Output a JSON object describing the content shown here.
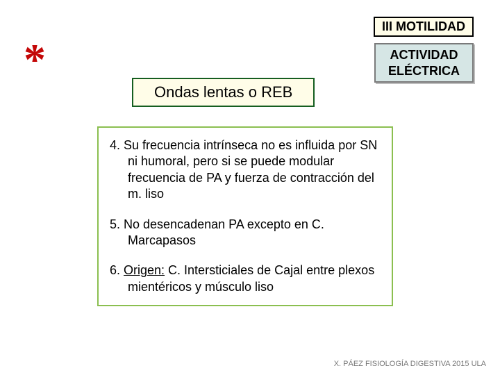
{
  "header": {
    "title": "III MOTILIDAD"
  },
  "activity": {
    "line1": "ACTIVIDAD",
    "line2": "ELÉCTRICA"
  },
  "asterisk": "*",
  "title": {
    "text": "Ondas lentas o REB"
  },
  "content": {
    "item4": "4. Su frecuencia intrínseca no es influida  por SN ni humoral, pero si se puede modular frecuencia de PA  y fuerza de contracción del m. liso",
    "item5": "5.  No desencadenan PA excepto en C. Marcapasos",
    "item6_prefix": "6. ",
    "item6_origen": "Origen:",
    "item6_rest": " C. Intersticiales de Cajal entre plexos mientéricos  y músculo liso"
  },
  "footer": {
    "text": "X. PÁEZ   FISIOLOGÍA DIGESTIVA 2015   ULA"
  },
  "colors": {
    "header_bg": "#fffde8",
    "activity_bg": "#d6e6e5",
    "content_border": "#8bbf50",
    "asterisk_color": "#c40707"
  }
}
